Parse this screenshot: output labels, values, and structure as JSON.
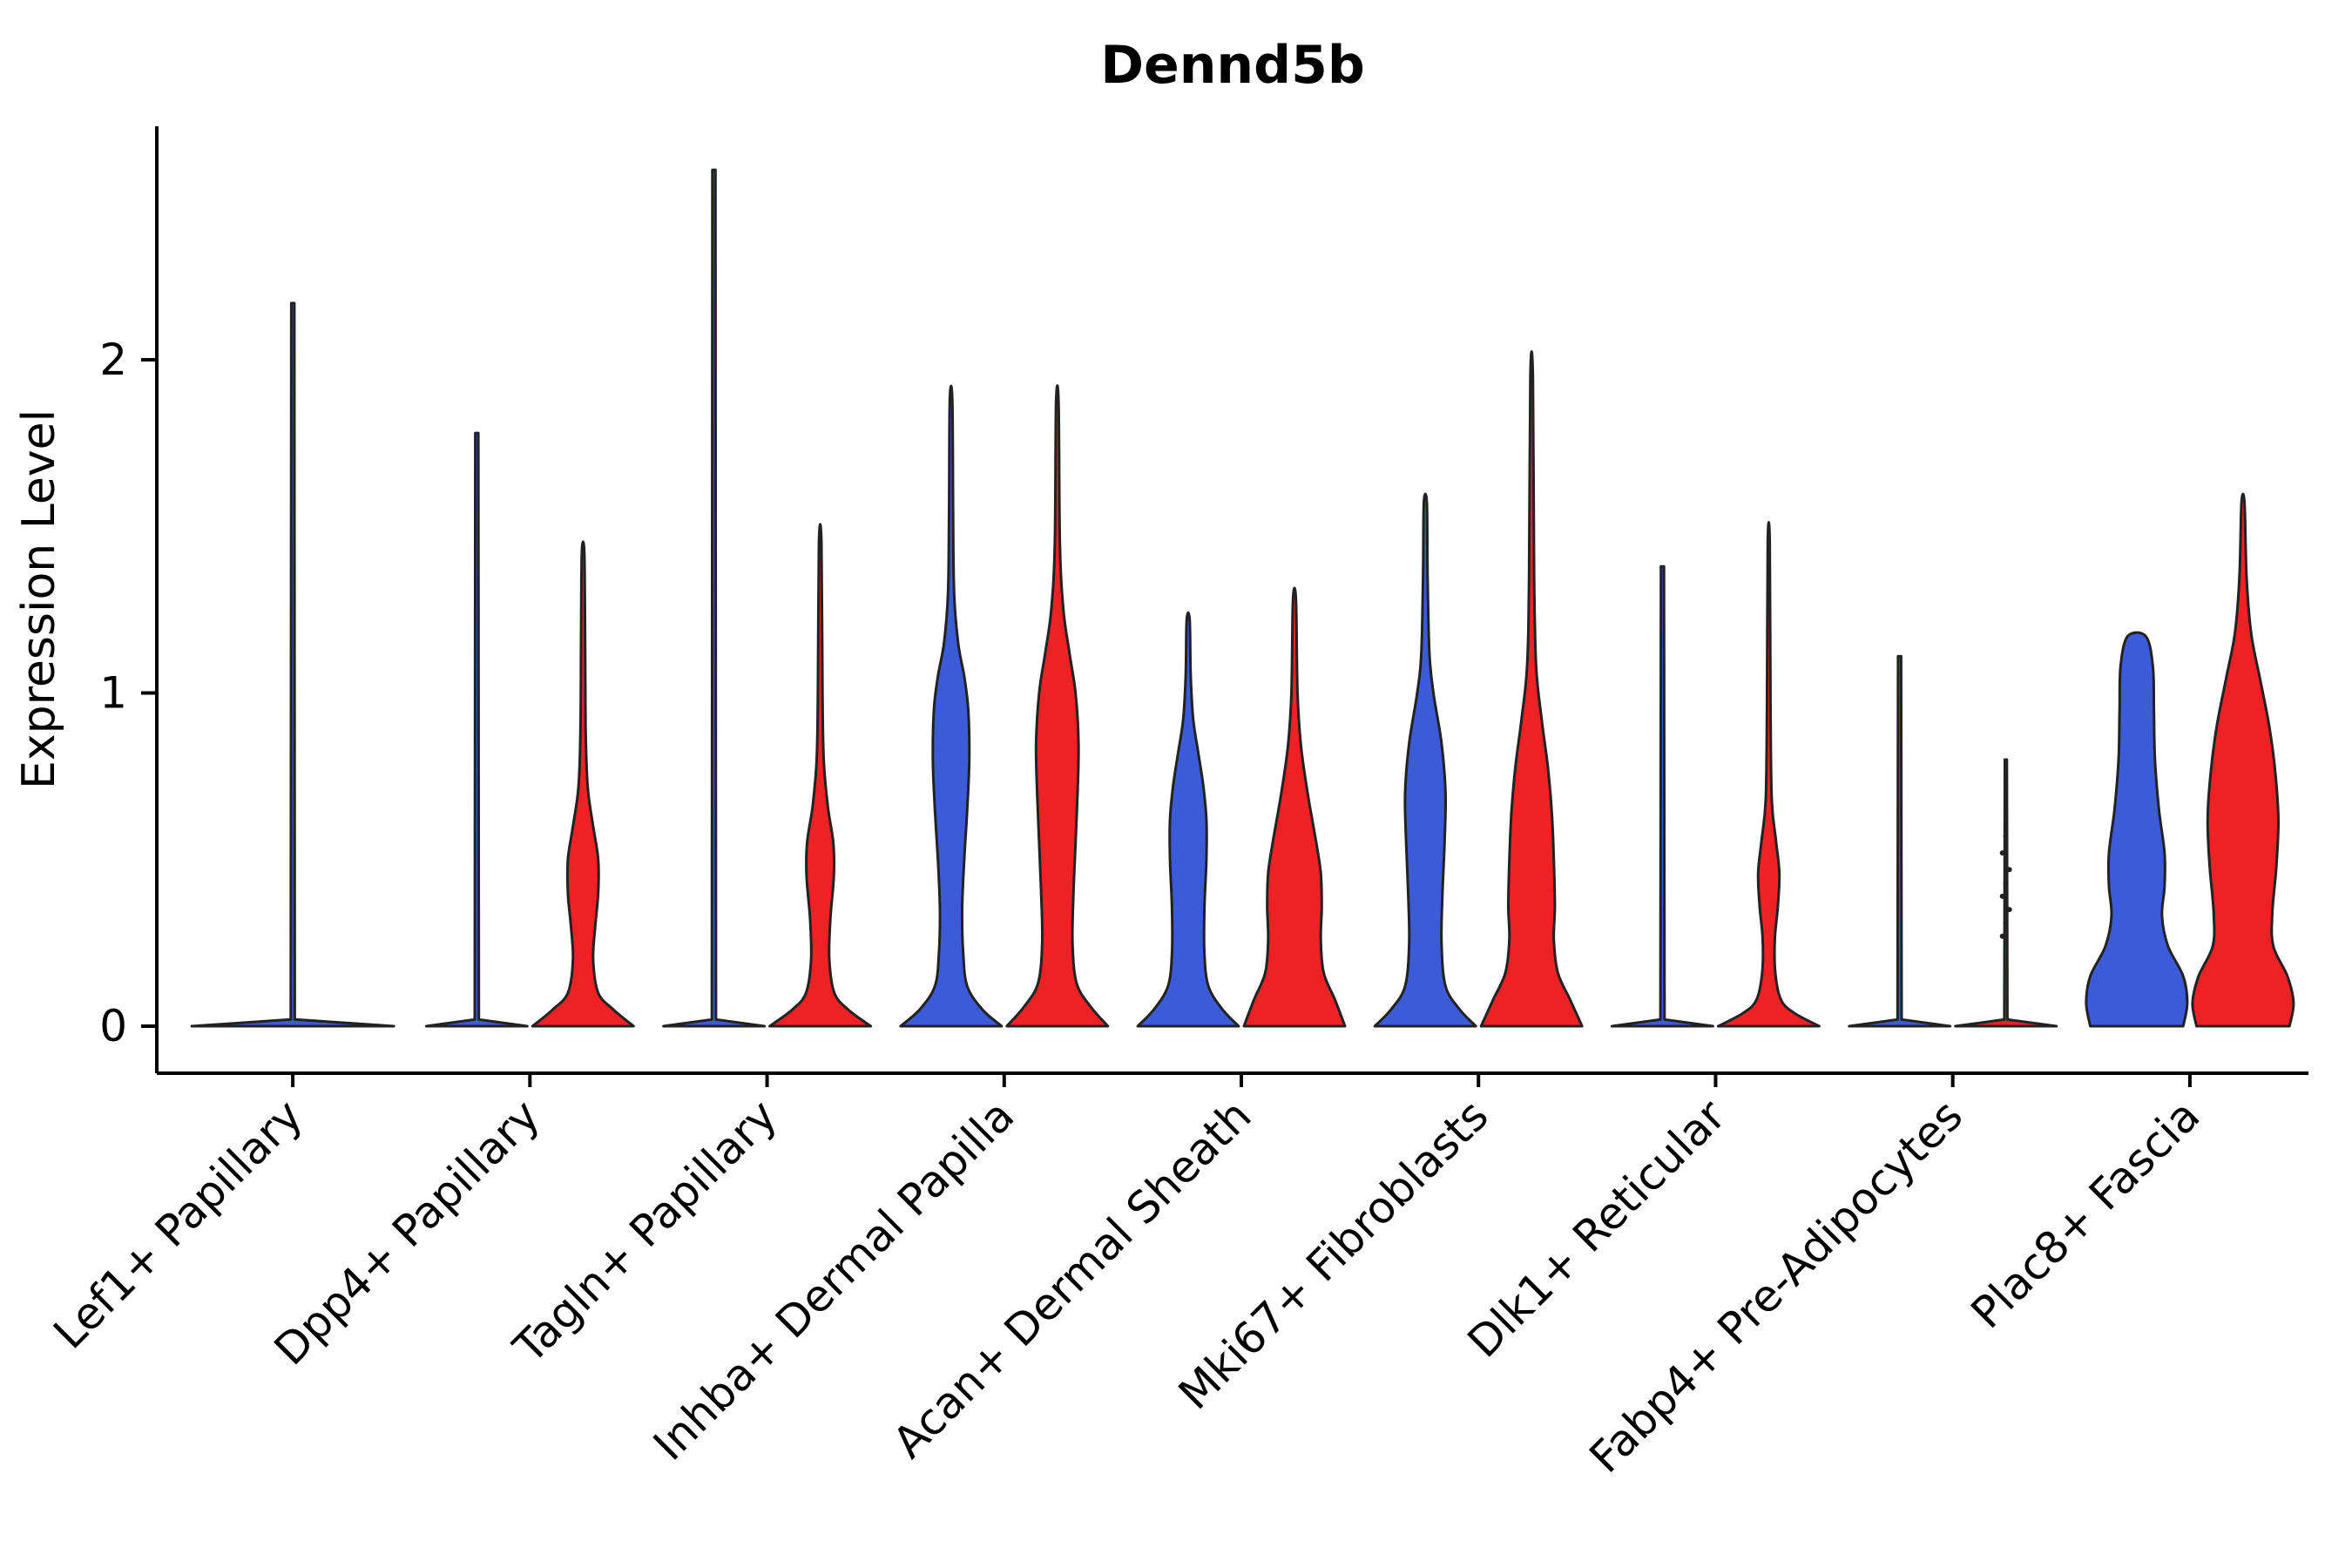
{
  "chart_data": {
    "type": "violin",
    "title": "Dennd5b",
    "ylabel": "Expression Level",
    "xlabel": "",
    "yticks": [
      0,
      1,
      2
    ],
    "ylim": [
      -0.05,
      2.72
    ],
    "grid": false,
    "legend": "none",
    "axis_color": "#000000",
    "outline_color": "#222222",
    "categories": [
      "Lef1+ Papillary",
      "Dpp4+ Papillary",
      "Tagln+ Papillary",
      "Inhba+ Dermal Papilla",
      "Acan+ Dermal Sheath",
      "Mki67+ Fibroblasts",
      "Dlk1+ Reticular",
      "Fabp4+ Pre-Adipocytes",
      "Plac8+ Fascia"
    ],
    "series": [
      {
        "name": "blue",
        "color": "#3C5BD9",
        "violins": [
          {
            "max": 2.17,
            "sharp": true,
            "dx": 0,
            "wscale": 2.0,
            "profile": [
              [
                0,
                1.0
              ],
              [
                0.02,
                0.02
              ],
              [
                2.17,
                0.015
              ]
            ]
          },
          {
            "max": 1.78,
            "sharp": true,
            "profile": [
              [
                0,
                1.0
              ],
              [
                0.02,
                0.04
              ],
              [
                1.78,
                0.03
              ]
            ]
          },
          {
            "max": 2.57,
            "sharp": true,
            "profile": [
              [
                0,
                1.0
              ],
              [
                0.02,
                0.04
              ],
              [
                2.57,
                0.03
              ]
            ]
          },
          {
            "max": 1.88,
            "profile": [
              [
                0,
                1.0
              ],
              [
                0.05,
                0.62
              ],
              [
                0.12,
                0.32
              ],
              [
                0.22,
                0.24
              ],
              [
                0.35,
                0.22
              ],
              [
                0.5,
                0.26
              ],
              [
                0.65,
                0.32
              ],
              [
                0.8,
                0.36
              ],
              [
                0.95,
                0.34
              ],
              [
                1.05,
                0.26
              ],
              [
                1.15,
                0.14
              ],
              [
                1.3,
                0.06
              ],
              [
                1.55,
                0.04
              ],
              [
                1.88,
                0.025
              ]
            ]
          },
          {
            "max": 1.22,
            "profile": [
              [
                0,
                1.0
              ],
              [
                0.05,
                0.68
              ],
              [
                0.12,
                0.4
              ],
              [
                0.22,
                0.32
              ],
              [
                0.35,
                0.32
              ],
              [
                0.5,
                0.36
              ],
              [
                0.62,
                0.36
              ],
              [
                0.72,
                0.3
              ],
              [
                0.82,
                0.2
              ],
              [
                0.92,
                0.1
              ],
              [
                1.05,
                0.05
              ],
              [
                1.22,
                0.03
              ]
            ]
          },
          {
            "max": 1.57,
            "profile": [
              [
                0,
                1.0
              ],
              [
                0.05,
                0.68
              ],
              [
                0.12,
                0.4
              ],
              [
                0.25,
                0.32
              ],
              [
                0.4,
                0.34
              ],
              [
                0.55,
                0.38
              ],
              [
                0.7,
                0.4
              ],
              [
                0.85,
                0.32
              ],
              [
                1.0,
                0.16
              ],
              [
                1.12,
                0.08
              ],
              [
                1.35,
                0.045
              ],
              [
                1.57,
                0.03
              ]
            ]
          },
          {
            "max": 1.38,
            "sharp": true,
            "profile": [
              [
                0,
                1.0
              ],
              [
                0.02,
                0.04
              ],
              [
                1.38,
                0.03
              ]
            ]
          },
          {
            "max": 1.11,
            "sharp": true,
            "profile": [
              [
                0,
                1.0
              ],
              [
                0.02,
                0.04
              ],
              [
                1.11,
                0.03
              ]
            ]
          },
          {
            "max": 1.17,
            "profile": [
              [
                0,
                0.92
              ],
              [
                0.07,
                1.0
              ],
              [
                0.15,
                0.92
              ],
              [
                0.24,
                0.62
              ],
              [
                0.33,
                0.5
              ],
              [
                0.42,
                0.55
              ],
              [
                0.52,
                0.55
              ],
              [
                0.65,
                0.44
              ],
              [
                0.8,
                0.36
              ],
              [
                0.95,
                0.34
              ],
              [
                1.08,
                0.32
              ],
              [
                1.17,
                0.18
              ]
            ]
          }
        ]
      },
      {
        "name": "red",
        "color": "#EE2224",
        "violins": [
          {
            "none": true
          },
          {
            "max": 1.42,
            "profile": [
              [
                0,
                1.0
              ],
              [
                0.05,
                0.6
              ],
              [
                0.1,
                0.3
              ],
              [
                0.2,
                0.2
              ],
              [
                0.3,
                0.24
              ],
              [
                0.4,
                0.3
              ],
              [
                0.5,
                0.3
              ],
              [
                0.6,
                0.2
              ],
              [
                0.72,
                0.09
              ],
              [
                0.9,
                0.05
              ],
              [
                1.15,
                0.04
              ],
              [
                1.42,
                0.025
              ]
            ]
          },
          {
            "max": 1.45,
            "profile": [
              [
                0,
                1.0
              ],
              [
                0.05,
                0.55
              ],
              [
                0.1,
                0.28
              ],
              [
                0.2,
                0.18
              ],
              [
                0.32,
                0.2
              ],
              [
                0.45,
                0.27
              ],
              [
                0.55,
                0.26
              ],
              [
                0.66,
                0.15
              ],
              [
                0.8,
                0.07
              ],
              [
                1.0,
                0.045
              ],
              [
                1.45,
                0.025
              ]
            ]
          },
          {
            "max": 1.87,
            "profile": [
              [
                0,
                1.0
              ],
              [
                0.06,
                0.65
              ],
              [
                0.13,
                0.38
              ],
              [
                0.25,
                0.3
              ],
              [
                0.4,
                0.32
              ],
              [
                0.55,
                0.36
              ],
              [
                0.7,
                0.4
              ],
              [
                0.85,
                0.42
              ],
              [
                1.0,
                0.36
              ],
              [
                1.12,
                0.24
              ],
              [
                1.25,
                0.12
              ],
              [
                1.45,
                0.05
              ],
              [
                1.87,
                0.025
              ]
            ]
          },
          {
            "max": 1.28,
            "profile": [
              [
                0,
                1.0
              ],
              [
                0.08,
                0.8
              ],
              [
                0.16,
                0.58
              ],
              [
                0.26,
                0.52
              ],
              [
                0.36,
                0.54
              ],
              [
                0.46,
                0.52
              ],
              [
                0.56,
                0.42
              ],
              [
                0.7,
                0.26
              ],
              [
                0.84,
                0.13
              ],
              [
                1.0,
                0.06
              ],
              [
                1.28,
                0.03
              ]
            ]
          },
          {
            "max": 1.95,
            "profile": [
              [
                0,
                1.0
              ],
              [
                0.08,
                0.76
              ],
              [
                0.16,
                0.52
              ],
              [
                0.26,
                0.44
              ],
              [
                0.36,
                0.46
              ],
              [
                0.5,
                0.44
              ],
              [
                0.64,
                0.4
              ],
              [
                0.78,
                0.32
              ],
              [
                0.92,
                0.2
              ],
              [
                1.08,
                0.09
              ],
              [
                1.35,
                0.05
              ],
              [
                1.95,
                0.025
              ]
            ]
          },
          {
            "max": 1.45,
            "profile": [
              [
                0,
                1.0
              ],
              [
                0.04,
                0.5
              ],
              [
                0.08,
                0.24
              ],
              [
                0.16,
                0.13
              ],
              [
                0.26,
                0.12
              ],
              [
                0.36,
                0.18
              ],
              [
                0.46,
                0.21
              ],
              [
                0.56,
                0.14
              ],
              [
                0.68,
                0.06
              ],
              [
                0.95,
                0.035
              ],
              [
                1.45,
                0.02
              ]
            ]
          },
          {
            "max": 0.8,
            "sharp": true,
            "profile": [
              [
                0,
                1.0
              ],
              [
                0.02,
                0.03
              ],
              [
                0.8,
                0.02
              ]
            ],
            "points": [
              0.27,
              0.31,
              0.35,
              0.39,
              0.43,
              0.47,
              0.52,
              0.57
            ]
          },
          {
            "max": 1.57,
            "profile": [
              [
                0,
                0.92
              ],
              [
                0.07,
                1.0
              ],
              [
                0.15,
                0.88
              ],
              [
                0.24,
                0.6
              ],
              [
                0.34,
                0.58
              ],
              [
                0.48,
                0.66
              ],
              [
                0.62,
                0.7
              ],
              [
                0.76,
                0.64
              ],
              [
                0.9,
                0.52
              ],
              [
                1.04,
                0.34
              ],
              [
                1.18,
                0.16
              ],
              [
                1.35,
                0.07
              ],
              [
                1.57,
                0.03
              ]
            ]
          }
        ]
      }
    ]
  }
}
